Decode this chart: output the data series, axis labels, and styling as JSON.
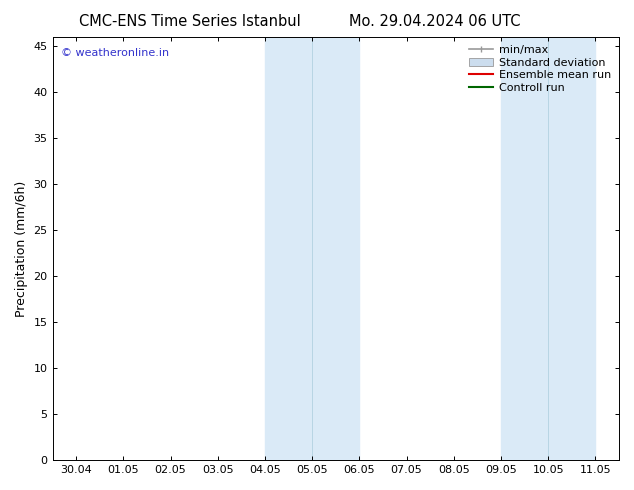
{
  "title_left": "CMC-ENS Time Series Istanbul",
  "title_right": "Mo. 29.04.2024 06 UTC",
  "ylabel": "Precipitation (mm/6h)",
  "ylim": [
    0,
    46
  ],
  "yticks": [
    0,
    5,
    10,
    15,
    20,
    25,
    30,
    35,
    40,
    45
  ],
  "xtick_labels": [
    "30.04",
    "01.05",
    "02.05",
    "03.05",
    "04.05",
    "05.05",
    "06.05",
    "07.05",
    "08.05",
    "09.05",
    "10.05",
    "11.05"
  ],
  "shaded_bands": [
    {
      "xmin": 4.0,
      "xmax": 5.0,
      "color": "#daeaf7"
    },
    {
      "xmin": 5.0,
      "xmax": 6.0,
      "color": "#daeaf7"
    },
    {
      "xmin": 9.0,
      "xmax": 10.0,
      "color": "#daeaf7"
    },
    {
      "xmin": 10.0,
      "xmax": 11.0,
      "color": "#daeaf7"
    }
  ],
  "band_dividers": [
    5.0,
    10.0
  ],
  "watermark": "© weatheronline.in",
  "watermark_color": "#3333cc",
  "background_color": "#ffffff",
  "legend_items": [
    {
      "label": "min/max",
      "color": "#999999",
      "type": "minmax_line"
    },
    {
      "label": "Standard deviation",
      "color": "#ccddee",
      "type": "box"
    },
    {
      "label": "Ensemble mean run",
      "color": "#dd0000",
      "type": "line"
    },
    {
      "label": "Controll run",
      "color": "#006600",
      "type": "line"
    }
  ],
  "title_fontsize": 10.5,
  "ylabel_fontsize": 9,
  "tick_fontsize": 8,
  "legend_fontsize": 8
}
